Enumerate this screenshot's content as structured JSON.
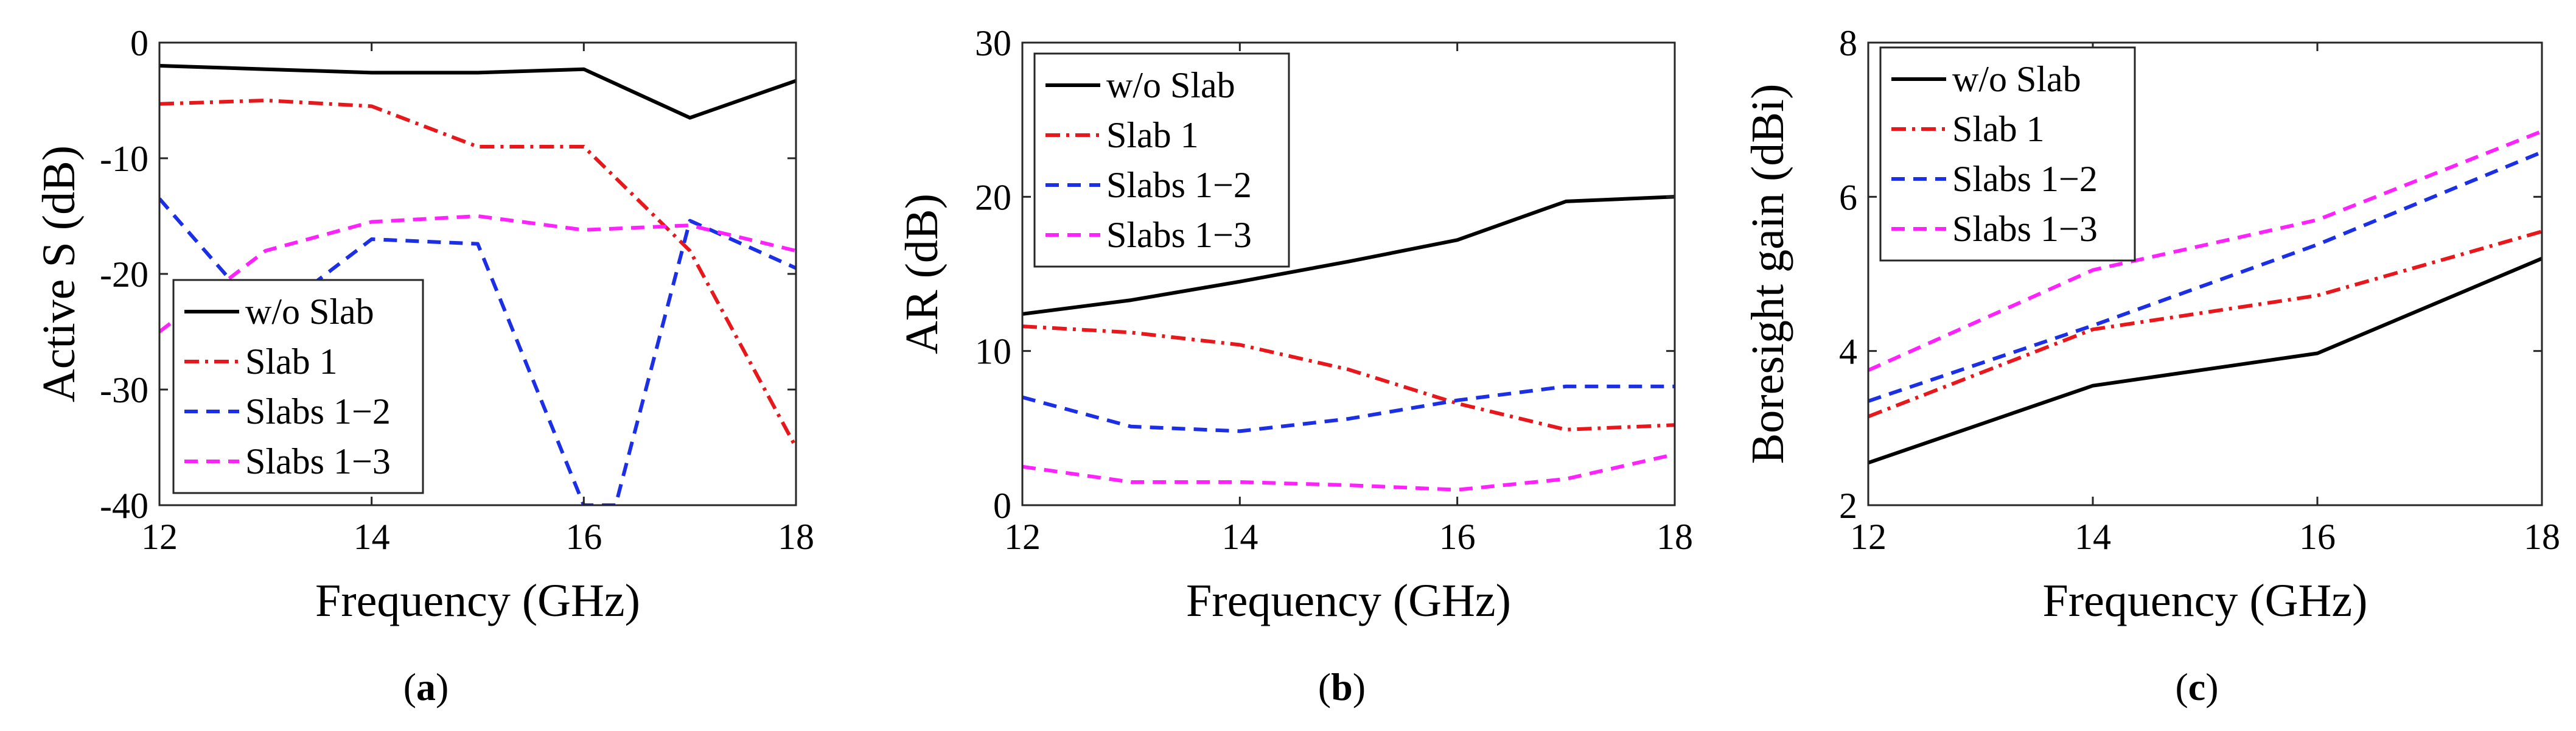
{
  "chart_data": [
    {
      "type": "line",
      "panel_label": "(a)",
      "panel_letter": "a",
      "xlabel": "Frequency (GHz)",
      "ylabel": "Active S (dB)",
      "xlim": [
        12,
        18
      ],
      "ylim": [
        -40,
        0
      ],
      "xticks": [
        12,
        14,
        16,
        18
      ],
      "yticks": [
        -40,
        -30,
        -20,
        -10,
        0
      ],
      "legend_position": "bottom-left",
      "x": [
        12,
        13,
        14,
        15,
        16,
        17,
        18
      ],
      "series": [
        {
          "name": "w/o Slab",
          "color": "#000000",
          "dash": "solid",
          "x": [
            12,
            13,
            14,
            15,
            16,
            17,
            18
          ],
          "values": [
            -2,
            -2.3,
            -2.6,
            -2.6,
            -2.3,
            -6.5,
            -3.3
          ]
        },
        {
          "name": "Slab 1",
          "color": "#e8171b",
          "dash": "dashdot",
          "x": [
            12,
            13,
            14,
            15,
            16,
            17,
            18
          ],
          "values": [
            -5.3,
            -5,
            -5.5,
            -9,
            -9,
            -18,
            -35
          ]
        },
        {
          "name": "Slabs 1−2",
          "color": "#1b2fe6",
          "dash": "dashed",
          "x": [
            12,
            13,
            14,
            15,
            16,
            16.3,
            17,
            18
          ],
          "values": [
            -13.5,
            -24,
            -17,
            -17.4,
            -40,
            -40,
            -15.4,
            -19.5
          ]
        },
        {
          "name": "Slabs 1−3",
          "color": "#ff22ff",
          "dash": "dashed",
          "x": [
            12,
            13,
            14,
            15,
            16,
            17,
            18
          ],
          "values": [
            -25,
            -18,
            -15.5,
            -15,
            -16.2,
            -15.8,
            -18
          ]
        }
      ]
    },
    {
      "type": "line",
      "panel_label": "(b)",
      "panel_letter": "b",
      "xlabel": "Frequency (GHz)",
      "ylabel": "AR (dB)",
      "xlim": [
        12,
        18
      ],
      "ylim": [
        0,
        30
      ],
      "xticks": [
        12,
        14,
        16,
        18
      ],
      "yticks": [
        0,
        10,
        20,
        30
      ],
      "legend_position": "top-left",
      "x": [
        12,
        13,
        14,
        15,
        16,
        17,
        18
      ],
      "series": [
        {
          "name": "w/o Slab",
          "color": "#000000",
          "dash": "solid",
          "x": [
            12,
            13,
            14,
            15,
            16,
            17,
            18
          ],
          "values": [
            12.4,
            13.3,
            14.5,
            15.8,
            17.2,
            19.7,
            20
          ]
        },
        {
          "name": "Slab 1",
          "color": "#e8171b",
          "dash": "dashdot",
          "x": [
            12,
            13,
            14,
            15,
            16,
            17,
            18
          ],
          "values": [
            11.6,
            11.2,
            10.4,
            8.8,
            6.6,
            4.9,
            5.2
          ]
        },
        {
          "name": "Slabs 1−2",
          "color": "#1b2fe6",
          "dash": "dashed",
          "x": [
            12,
            13,
            14,
            15,
            16,
            17,
            18
          ],
          "values": [
            7,
            5.1,
            4.8,
            5.6,
            6.8,
            7.7,
            7.7
          ]
        },
        {
          "name": "Slabs 1−3",
          "color": "#ff22ff",
          "dash": "dashed",
          "x": [
            12,
            13,
            14,
            15,
            16,
            17,
            18
          ],
          "values": [
            2.5,
            1.5,
            1.5,
            1.3,
            1,
            1.7,
            3.3
          ]
        }
      ]
    },
    {
      "type": "line",
      "panel_label": "(c)",
      "panel_letter": "c",
      "xlabel": "Frequency (GHz)",
      "ylabel": "Boresight gain (dBi)",
      "xlim": [
        12,
        18
      ],
      "ylim": [
        2,
        8
      ],
      "xticks": [
        12,
        14,
        16,
        18
      ],
      "yticks": [
        2,
        4,
        6,
        8
      ],
      "legend_position": "top-left",
      "x": [
        12,
        14,
        16,
        18
      ],
      "series": [
        {
          "name": "w/o Slab",
          "color": "#000000",
          "dash": "solid",
          "x": [
            12,
            14,
            16,
            18
          ],
          "values": [
            2.55,
            3.55,
            3.97,
            5.2
          ]
        },
        {
          "name": "Slab 1",
          "color": "#e8171b",
          "dash": "dashdot",
          "x": [
            12,
            14,
            16,
            18
          ],
          "values": [
            3.15,
            4.28,
            4.72,
            5.55
          ]
        },
        {
          "name": "Slabs 1−2",
          "color": "#1b2fe6",
          "dash": "dashed",
          "x": [
            12,
            14,
            16,
            18
          ],
          "values": [
            3.35,
            4.33,
            5.38,
            6.58
          ]
        },
        {
          "name": "Slabs 1−3",
          "color": "#ff22ff",
          "dash": "dashed",
          "x": [
            12,
            14,
            16,
            18
          ],
          "values": [
            3.75,
            5.05,
            5.7,
            6.85
          ]
        }
      ]
    }
  ]
}
